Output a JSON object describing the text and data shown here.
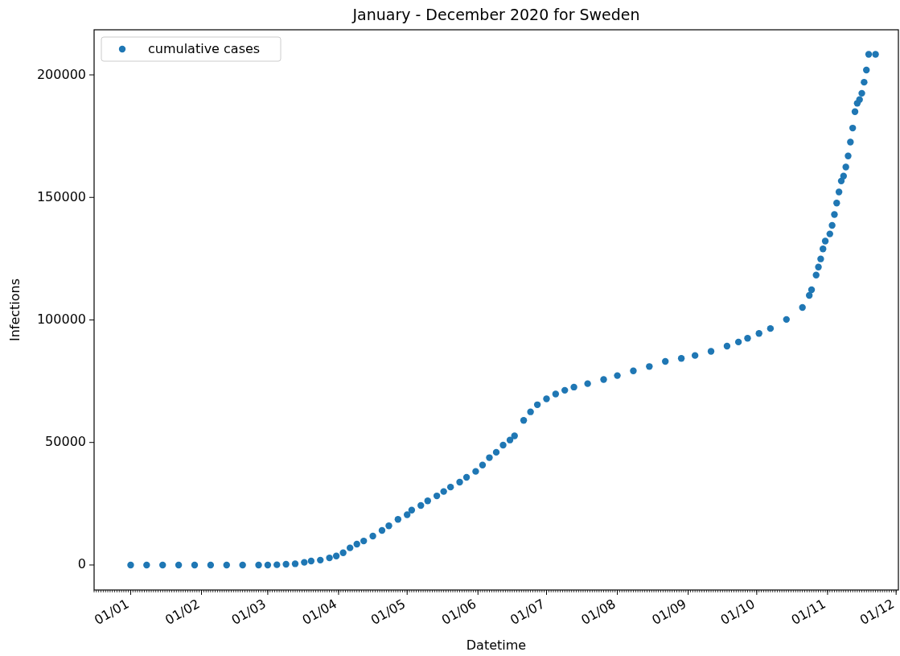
{
  "chart_data": {
    "type": "scatter",
    "title": "January - December 2020 for Sweden",
    "xlabel": "Datetime",
    "ylabel": "Infections",
    "xlim": [
      "2019-12-16",
      "2020-12-02"
    ],
    "ylim": [
      -10200,
      218400
    ],
    "xticks": [
      {
        "value": "2020-01-01",
        "label": "01/01"
      },
      {
        "value": "2020-02-01",
        "label": "01/02"
      },
      {
        "value": "2020-03-01",
        "label": "01/03"
      },
      {
        "value": "2020-04-01",
        "label": "01/04"
      },
      {
        "value": "2020-05-01",
        "label": "01/05"
      },
      {
        "value": "2020-06-01",
        "label": "01/06"
      },
      {
        "value": "2020-07-01",
        "label": "01/07"
      },
      {
        "value": "2020-08-01",
        "label": "01/08"
      },
      {
        "value": "2020-09-01",
        "label": "01/09"
      },
      {
        "value": "2020-10-01",
        "label": "01/10"
      },
      {
        "value": "2020-11-01",
        "label": "01/11"
      },
      {
        "value": "2020-12-01",
        "label": "01/12"
      }
    ],
    "yticks": [
      0,
      50000,
      100000,
      150000,
      200000
    ],
    "legend": "top left",
    "marker": "circle",
    "grid": false,
    "x": [
      "2020-01-01",
      "2020-01-08",
      "2020-01-15",
      "2020-01-22",
      "2020-01-29",
      "2020-02-05",
      "2020-02-12",
      "2020-02-19",
      "2020-02-26",
      "2020-03-01",
      "2020-03-05",
      "2020-03-09",
      "2020-03-13",
      "2020-03-17",
      "2020-03-20",
      "2020-03-24",
      "2020-03-28",
      "2020-03-31",
      "2020-04-03",
      "2020-04-06",
      "2020-04-09",
      "2020-04-12",
      "2020-04-16",
      "2020-04-20",
      "2020-04-23",
      "2020-04-27",
      "2020-05-01",
      "2020-05-03",
      "2020-05-07",
      "2020-05-10",
      "2020-05-14",
      "2020-05-17",
      "2020-05-20",
      "2020-05-24",
      "2020-05-27",
      "2020-05-31",
      "2020-06-03",
      "2020-06-06",
      "2020-06-09",
      "2020-06-12",
      "2020-06-15",
      "2020-06-17",
      "2020-06-21",
      "2020-06-24",
      "2020-06-27",
      "2020-07-01",
      "2020-07-05",
      "2020-07-09",
      "2020-07-13",
      "2020-07-19",
      "2020-07-26",
      "2020-08-01",
      "2020-08-08",
      "2020-08-15",
      "2020-08-22",
      "2020-08-29",
      "2020-09-04",
      "2020-09-11",
      "2020-09-18",
      "2020-09-23",
      "2020-09-27",
      "2020-10-02",
      "2020-10-07",
      "2020-10-14",
      "2020-10-21",
      "2020-10-24",
      "2020-10-25",
      "2020-10-27",
      "2020-10-28",
      "2020-10-29",
      "2020-10-30",
      "2020-10-31",
      "2020-11-02",
      "2020-11-03",
      "2020-11-04",
      "2020-11-05",
      "2020-11-06",
      "2020-11-07",
      "2020-11-08",
      "2020-11-09",
      "2020-11-10",
      "2020-11-11",
      "2020-11-12",
      "2020-11-13",
      "2020-11-14",
      "2020-11-15",
      "2020-11-16",
      "2020-11-17",
      "2020-11-18",
      "2020-11-19",
      "2020-11-22"
    ],
    "series": [
      {
        "name": "cumulative cases",
        "color": "#1f77b4",
        "values": [
          0,
          0,
          0,
          0,
          0,
          0,
          0,
          0,
          0,
          0,
          100,
          300,
          500,
          1100,
          1600,
          2000,
          2900,
          3700,
          5000,
          7000,
          8500,
          9800,
          11800,
          14100,
          16000,
          18600,
          20500,
          22400,
          24300,
          26200,
          28200,
          30000,
          31800,
          33800,
          35800,
          38200,
          40800,
          43800,
          46000,
          48900,
          51000,
          52700,
          59000,
          62500,
          65400,
          67800,
          69800,
          71300,
          72600,
          74000,
          75700,
          77300,
          79200,
          81000,
          83100,
          84300,
          85500,
          87200,
          89300,
          91000,
          92500,
          94500,
          96500,
          100200,
          105100,
          110000,
          112300,
          118300,
          121600,
          124900,
          129000,
          132200,
          135100,
          138600,
          143000,
          147700,
          152200,
          156700,
          158700,
          162400,
          166900,
          172600,
          178300,
          185000,
          188400,
          189900,
          192500,
          197000,
          202000,
          208400,
          208400
        ]
      }
    ]
  }
}
